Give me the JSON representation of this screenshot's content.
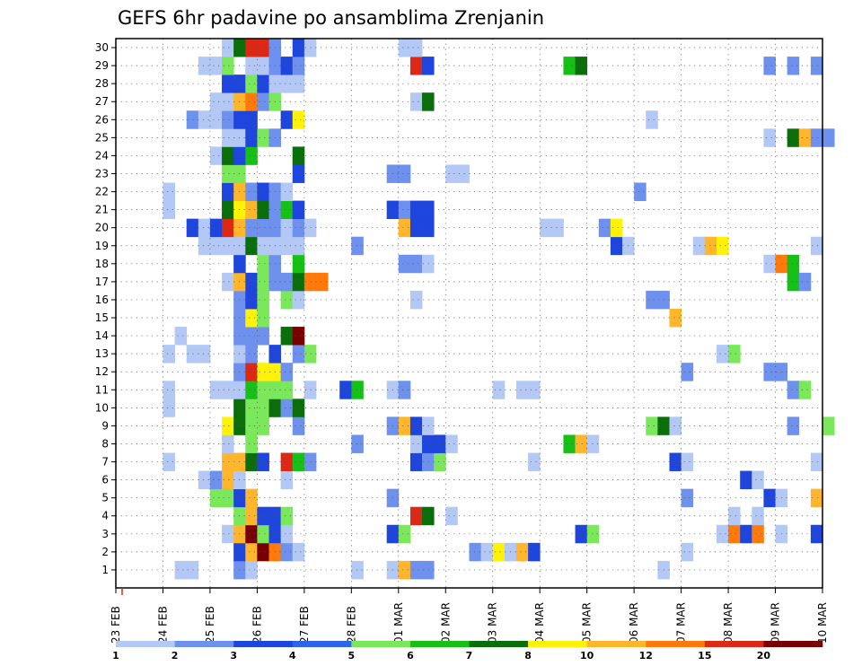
{
  "chart_data": {
    "type": "heatmap",
    "title": "GEFS 6hr padavine po ansamblima Zrenjanin",
    "xlabel": "",
    "ylabel": "",
    "y_tick_labels": [
      "1",
      "2",
      "3",
      "4",
      "5",
      "6",
      "7",
      "8",
      "9",
      "10",
      "11",
      "12",
      "13",
      "14",
      "15",
      "16",
      "17",
      "18",
      "19",
      "20",
      "21",
      "22",
      "23",
      "24",
      "25",
      "26",
      "27",
      "28",
      "29",
      "30"
    ],
    "x_tick_labels": [
      "23 FEB",
      "24 FEB",
      "25 FEB",
      "26 FEB",
      "27 FEB",
      "28 FEB",
      "01 MAR",
      "02 MAR",
      "03 MAR",
      "04 MAR",
      "05 MAR",
      "06 MAR",
      "07 MAR",
      "08 MAR",
      "09 MAR",
      "10 MAR"
    ],
    "x_range_steps": [
      0,
      60
    ],
    "step_hours": 6,
    "grid": true,
    "colorbar": {
      "labels": [
        "1",
        "2",
        "3",
        "4",
        "5",
        "6",
        "7",
        "8",
        "10",
        "12",
        "15",
        "20"
      ],
      "colors": [
        "#b4c8f5",
        "#6e91ee",
        "#1e46dc",
        "#2f64e8",
        "#7ae85a",
        "#17c017",
        "#0a6e0a",
        "#fff20a",
        "#ffb62d",
        "#ff7a0a",
        "#dc2814",
        "#780000"
      ]
    },
    "cells": [
      [
        1,
        5,
        1
      ],
      [
        1,
        6,
        1
      ],
      [
        1,
        10,
        2
      ],
      [
        1,
        11,
        1
      ],
      [
        1,
        20,
        1
      ],
      [
        1,
        23,
        1
      ],
      [
        1,
        24,
        10
      ],
      [
        1,
        25,
        2
      ],
      [
        1,
        26,
        2
      ],
      [
        1,
        46,
        1
      ],
      [
        2,
        10,
        3
      ],
      [
        2,
        11,
        10
      ],
      [
        2,
        12,
        20
      ],
      [
        2,
        13,
        12
      ],
      [
        2,
        14,
        2
      ],
      [
        2,
        15,
        1
      ],
      [
        2,
        30,
        2
      ],
      [
        2,
        31,
        1
      ],
      [
        2,
        32,
        8
      ],
      [
        2,
        33,
        1
      ],
      [
        2,
        34,
        10
      ],
      [
        2,
        35,
        3
      ],
      [
        2,
        48,
        1
      ],
      [
        3,
        9,
        1
      ],
      [
        3,
        10,
        10
      ],
      [
        3,
        11,
        20
      ],
      [
        3,
        12,
        5
      ],
      [
        3,
        13,
        3
      ],
      [
        3,
        14,
        1
      ],
      [
        3,
        23,
        3
      ],
      [
        3,
        24,
        5
      ],
      [
        3,
        39,
        3
      ],
      [
        3,
        40,
        5
      ],
      [
        3,
        51,
        1
      ],
      [
        3,
        52,
        12
      ],
      [
        3,
        53,
        3
      ],
      [
        3,
        54,
        12
      ],
      [
        3,
        56,
        1
      ],
      [
        3,
        59,
        3
      ],
      [
        4,
        10,
        5
      ],
      [
        4,
        11,
        10
      ],
      [
        4,
        12,
        3
      ],
      [
        4,
        13,
        3
      ],
      [
        4,
        14,
        5
      ],
      [
        4,
        25,
        15
      ],
      [
        4,
        26,
        7
      ],
      [
        4,
        28,
        1
      ],
      [
        4,
        52,
        1
      ],
      [
        4,
        54,
        1
      ],
      [
        5,
        8,
        5
      ],
      [
        5,
        9,
        5
      ],
      [
        5,
        10,
        3
      ],
      [
        5,
        11,
        10
      ],
      [
        5,
        23,
        2
      ],
      [
        5,
        48,
        2
      ],
      [
        5,
        55,
        3
      ],
      [
        5,
        56,
        1
      ],
      [
        5,
        59,
        10
      ],
      [
        6,
        7,
        1
      ],
      [
        6,
        8,
        2
      ],
      [
        6,
        9,
        10
      ],
      [
        6,
        10,
        1
      ],
      [
        6,
        14,
        1
      ],
      [
        6,
        53,
        3
      ],
      [
        6,
        54,
        1
      ],
      [
        7,
        4,
        1
      ],
      [
        7,
        9,
        10
      ],
      [
        7,
        10,
        10
      ],
      [
        7,
        11,
        7
      ],
      [
        7,
        12,
        3
      ],
      [
        7,
        14,
        15
      ],
      [
        7,
        15,
        6
      ],
      [
        7,
        16,
        2
      ],
      [
        7,
        25,
        3
      ],
      [
        7,
        26,
        2
      ],
      [
        7,
        27,
        5
      ],
      [
        7,
        35,
        1
      ],
      [
        7,
        47,
        3
      ],
      [
        7,
        48,
        1
      ],
      [
        7,
        59,
        1
      ],
      [
        8,
        9,
        1
      ],
      [
        8,
        11,
        5
      ],
      [
        8,
        20,
        2
      ],
      [
        8,
        25,
        1
      ],
      [
        8,
        26,
        3
      ],
      [
        8,
        27,
        3
      ],
      [
        8,
        28,
        1
      ],
      [
        8,
        38,
        6
      ],
      [
        8,
        39,
        10
      ],
      [
        8,
        40,
        1
      ],
      [
        9,
        9,
        8
      ],
      [
        9,
        10,
        7
      ],
      [
        9,
        11,
        5
      ],
      [
        9,
        12,
        5
      ],
      [
        9,
        15,
        2
      ],
      [
        9,
        23,
        2
      ],
      [
        9,
        24,
        10
      ],
      [
        9,
        25,
        3
      ],
      [
        9,
        26,
        1
      ],
      [
        9,
        45,
        5
      ],
      [
        9,
        46,
        7
      ],
      [
        9,
        47,
        1
      ],
      [
        9,
        57,
        2
      ],
      [
        9,
        60,
        5
      ],
      [
        10,
        4,
        1
      ],
      [
        10,
        10,
        7
      ],
      [
        10,
        11,
        5
      ],
      [
        10,
        12,
        5
      ],
      [
        10,
        13,
        7
      ],
      [
        10,
        14,
        2
      ],
      [
        10,
        15,
        7
      ],
      [
        11,
        4,
        1
      ],
      [
        11,
        8,
        1
      ],
      [
        11,
        9,
        1
      ],
      [
        11,
        10,
        1
      ],
      [
        11,
        11,
        6
      ],
      [
        11,
        12,
        5
      ],
      [
        11,
        13,
        5
      ],
      [
        11,
        14,
        5
      ],
      [
        11,
        16,
        1
      ],
      [
        11,
        19,
        3
      ],
      [
        11,
        20,
        6
      ],
      [
        11,
        23,
        1
      ],
      [
        11,
        24,
        2
      ],
      [
        11,
        32,
        1
      ],
      [
        11,
        34,
        1
      ],
      [
        11,
        35,
        1
      ],
      [
        11,
        57,
        2
      ],
      [
        11,
        58,
        5
      ],
      [
        12,
        10,
        2
      ],
      [
        12,
        11,
        15
      ],
      [
        12,
        12,
        8
      ],
      [
        12,
        13,
        8
      ],
      [
        12,
        14,
        2
      ],
      [
        12,
        48,
        2
      ],
      [
        12,
        55,
        2
      ],
      [
        12,
        56,
        2
      ],
      [
        13,
        4,
        1
      ],
      [
        13,
        6,
        1
      ],
      [
        13,
        7,
        1
      ],
      [
        13,
        10,
        1
      ],
      [
        13,
        11,
        2
      ],
      [
        13,
        13,
        3
      ],
      [
        13,
        15,
        2
      ],
      [
        13,
        16,
        5
      ],
      [
        13,
        51,
        1
      ],
      [
        13,
        52,
        5
      ],
      [
        14,
        5,
        1
      ],
      [
        14,
        10,
        2
      ],
      [
        14,
        11,
        2
      ],
      [
        14,
        12,
        2
      ],
      [
        14,
        14,
        7
      ],
      [
        14,
        15,
        20
      ],
      [
        15,
        10,
        2
      ],
      [
        15,
        11,
        8
      ],
      [
        15,
        12,
        5
      ],
      [
        15,
        47,
        10
      ],
      [
        16,
        10,
        2
      ],
      [
        16,
        11,
        3
      ],
      [
        16,
        12,
        5
      ],
      [
        16,
        14,
        5
      ],
      [
        16,
        15,
        1
      ],
      [
        16,
        25,
        1
      ],
      [
        16,
        45,
        2
      ],
      [
        16,
        46,
        2
      ],
      [
        17,
        9,
        1
      ],
      [
        17,
        10,
        10
      ],
      [
        17,
        11,
        3
      ],
      [
        17,
        12,
        5
      ],
      [
        17,
        13,
        2
      ],
      [
        17,
        14,
        2
      ],
      [
        17,
        15,
        7
      ],
      [
        17,
        16,
        12
      ],
      [
        17,
        17,
        12
      ],
      [
        17,
        57,
        6
      ],
      [
        17,
        58,
        2
      ],
      [
        18,
        10,
        3
      ],
      [
        18,
        12,
        5
      ],
      [
        18,
        13,
        2
      ],
      [
        18,
        15,
        6
      ],
      [
        18,
        24,
        2
      ],
      [
        18,
        25,
        2
      ],
      [
        18,
        26,
        1
      ],
      [
        18,
        55,
        1
      ],
      [
        18,
        56,
        12
      ],
      [
        18,
        57,
        6
      ],
      [
        19,
        7,
        1
      ],
      [
        19,
        8,
        1
      ],
      [
        19,
        9,
        1
      ],
      [
        19,
        10,
        1
      ],
      [
        19,
        11,
        7
      ],
      [
        19,
        12,
        1
      ],
      [
        19,
        13,
        1
      ],
      [
        19,
        14,
        1
      ],
      [
        19,
        15,
        1
      ],
      [
        19,
        20,
        2
      ],
      [
        19,
        42,
        3
      ],
      [
        19,
        43,
        1
      ],
      [
        19,
        49,
        1
      ],
      [
        19,
        50,
        10
      ],
      [
        19,
        51,
        8
      ],
      [
        19,
        59,
        1
      ],
      [
        20,
        6,
        3
      ],
      [
        20,
        7,
        1
      ],
      [
        20,
        8,
        3
      ],
      [
        20,
        9,
        15
      ],
      [
        20,
        10,
        10
      ],
      [
        20,
        11,
        2
      ],
      [
        20,
        12,
        2
      ],
      [
        20,
        13,
        2
      ],
      [
        20,
        14,
        1
      ],
      [
        20,
        15,
        2
      ],
      [
        20,
        16,
        1
      ],
      [
        20,
        24,
        10
      ],
      [
        20,
        25,
        3
      ],
      [
        20,
        26,
        3
      ],
      [
        20,
        36,
        1
      ],
      [
        20,
        37,
        1
      ],
      [
        20,
        41,
        2
      ],
      [
        20,
        42,
        8
      ],
      [
        21,
        4,
        1
      ],
      [
        21,
        9,
        7
      ],
      [
        21,
        10,
        8
      ],
      [
        21,
        11,
        10
      ],
      [
        21,
        12,
        7
      ],
      [
        21,
        13,
        2
      ],
      [
        21,
        14,
        6
      ],
      [
        21,
        15,
        3
      ],
      [
        21,
        23,
        3
      ],
      [
        21,
        24,
        2
      ],
      [
        21,
        25,
        3
      ],
      [
        21,
        26,
        3
      ],
      [
        22,
        4,
        1
      ],
      [
        22,
        9,
        3
      ],
      [
        22,
        10,
        10
      ],
      [
        22,
        11,
        2
      ],
      [
        22,
        12,
        3
      ],
      [
        22,
        13,
        2
      ],
      [
        22,
        14,
        1
      ],
      [
        22,
        44,
        2
      ],
      [
        23,
        9,
        5
      ],
      [
        23,
        10,
        5
      ],
      [
        23,
        15,
        3
      ],
      [
        23,
        23,
        2
      ],
      [
        23,
        24,
        2
      ],
      [
        23,
        28,
        1
      ],
      [
        23,
        29,
        1
      ],
      [
        24,
        8,
        1
      ],
      [
        24,
        9,
        7
      ],
      [
        24,
        10,
        3
      ],
      [
        24,
        11,
        6
      ],
      [
        24,
        15,
        7
      ],
      [
        25,
        9,
        1
      ],
      [
        25,
        10,
        1
      ],
      [
        25,
        11,
        3
      ],
      [
        25,
        12,
        5
      ],
      [
        25,
        13,
        2
      ],
      [
        25,
        55,
        1
      ],
      [
        25,
        57,
        7
      ],
      [
        25,
        58,
        10
      ],
      [
        25,
        59,
        2
      ],
      [
        25,
        60,
        2
      ],
      [
        26,
        6,
        2
      ],
      [
        26,
        7,
        1
      ],
      [
        26,
        8,
        1
      ],
      [
        26,
        9,
        2
      ],
      [
        26,
        10,
        3
      ],
      [
        26,
        11,
        3
      ],
      [
        26,
        14,
        3
      ],
      [
        26,
        15,
        8
      ],
      [
        26,
        45,
        1
      ],
      [
        27,
        8,
        1
      ],
      [
        27,
        9,
        1
      ],
      [
        27,
        10,
        10
      ],
      [
        27,
        11,
        12
      ],
      [
        27,
        12,
        2
      ],
      [
        27,
        13,
        5
      ],
      [
        27,
        25,
        1
      ],
      [
        27,
        26,
        7
      ],
      [
        28,
        9,
        3
      ],
      [
        28,
        10,
        3
      ],
      [
        28,
        11,
        5
      ],
      [
        28,
        12,
        3
      ],
      [
        28,
        13,
        1
      ],
      [
        28,
        14,
        1
      ],
      [
        28,
        15,
        1
      ],
      [
        29,
        7,
        1
      ],
      [
        29,
        8,
        1
      ],
      [
        29,
        9,
        5
      ],
      [
        29,
        11,
        1
      ],
      [
        29,
        12,
        1
      ],
      [
        29,
        13,
        2
      ],
      [
        29,
        14,
        3
      ],
      [
        29,
        15,
        2
      ],
      [
        29,
        25,
        15
      ],
      [
        29,
        26,
        3
      ],
      [
        29,
        38,
        6
      ],
      [
        29,
        39,
        7
      ],
      [
        29,
        55,
        2
      ],
      [
        29,
        57,
        2
      ],
      [
        29,
        59,
        2
      ],
      [
        30,
        9,
        1
      ],
      [
        30,
        10,
        7
      ],
      [
        30,
        11,
        15
      ],
      [
        30,
        12,
        15
      ],
      [
        30,
        13,
        2
      ],
      [
        30,
        15,
        3
      ],
      [
        30,
        16,
        1
      ],
      [
        30,
        24,
        1
      ],
      [
        30,
        25,
        1
      ]
    ]
  }
}
